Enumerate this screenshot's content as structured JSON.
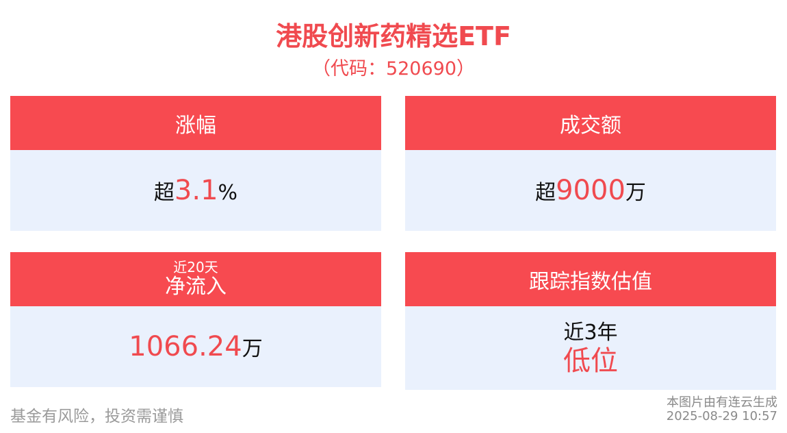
{
  "header": {
    "title": "港股创新药精选ETF",
    "subtitle": "（代码：520690）"
  },
  "cards": [
    {
      "label": "涨幅",
      "prefix": "超",
      "value": "3.1",
      "suffix": "%"
    },
    {
      "label": "成交额",
      "prefix": "超",
      "value": "9000",
      "suffix": "万"
    },
    {
      "sublabel": "近20天",
      "label": "净流入",
      "value": "1066.24",
      "suffix": "万"
    },
    {
      "label": "跟踪指数估值",
      "line1": "近3年",
      "line2": "低位"
    }
  ],
  "footer": {
    "disclaimer": "基金有风险，投资需谨慎",
    "source": "本图片由有连云生成",
    "timestamp": "2025-08-29 10:57"
  }
}
